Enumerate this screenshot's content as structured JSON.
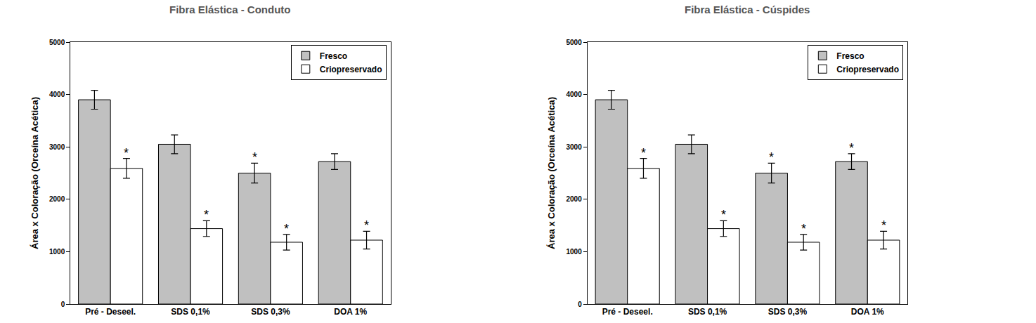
{
  "chart_data": [
    {
      "type": "bar",
      "title": "Fibra Elástica - Conduto",
      "y_label": "Área x Coloração (Orceína Acética)",
      "categories": [
        "Pré - Deseel.",
        "SDS 0,1%",
        "SDS 0,3%",
        "DOA 1%"
      ],
      "series": [
        {
          "name": "Fresco",
          "color": "#c0c0c0",
          "values": [
            3900,
            3050,
            2500,
            2720
          ],
          "errors": [
            180,
            180,
            190,
            150
          ]
        },
        {
          "name": "Criopreservado",
          "color": "#ffffff",
          "values": [
            2590,
            1440,
            1180,
            1220
          ],
          "errors": [
            190,
            150,
            150,
            170
          ]
        }
      ],
      "ylim": [
        0,
        5000
      ],
      "yticks": [
        0,
        1000,
        2000,
        3000,
        4000,
        5000
      ],
      "grid": false,
      "legend": "upper right",
      "annotations": [
        {
          "category": "Pré - Deseel.",
          "series": "Criopreservado",
          "text": "*"
        },
        {
          "category": "SDS 0,1%",
          "series": "Criopreservado",
          "text": "*"
        },
        {
          "category": "SDS 0,3%",
          "series": "Fresco",
          "text": "*"
        },
        {
          "category": "SDS 0,3%",
          "series": "Criopreservado",
          "text": "*"
        },
        {
          "category": "DOA 1%",
          "series": "Criopreservado",
          "text": "*"
        }
      ]
    },
    {
      "type": "bar",
      "title": "Fibra Elástica - Cúspides",
      "y_label": "Área x Coloração (Orceína Acética)",
      "categories": [
        "Pré - Deseel.",
        "SDS 0,1%",
        "SDS 0,3%",
        "DOA 1%"
      ],
      "series": [
        {
          "name": "Fresco",
          "color": "#c0c0c0",
          "values": [
            3900,
            3050,
            2500,
            2720
          ],
          "errors": [
            180,
            180,
            190,
            150
          ]
        },
        {
          "name": "Criopreservado",
          "color": "#ffffff",
          "values": [
            2590,
            1440,
            1180,
            1220
          ],
          "errors": [
            190,
            150,
            150,
            170
          ]
        }
      ],
      "ylim": [
        0,
        5000
      ],
      "yticks": [
        0,
        1000,
        2000,
        3000,
        4000,
        5000
      ],
      "grid": false,
      "legend": "upper right",
      "annotations": [
        {
          "category": "Pré - Deseel.",
          "series": "Criopreservado",
          "text": "*"
        },
        {
          "category": "SDS 0,1%",
          "series": "Criopreservado",
          "text": "*"
        },
        {
          "category": "SDS 0,3%",
          "series": "Fresco",
          "text": "*"
        },
        {
          "category": "SDS 0,3%",
          "series": "Criopreservado",
          "text": "*"
        },
        {
          "category": "DOA 1%",
          "series": "Fresco",
          "text": "*"
        },
        {
          "category": "DOA 1%",
          "series": "Criopreservado",
          "text": "*"
        }
      ]
    }
  ]
}
